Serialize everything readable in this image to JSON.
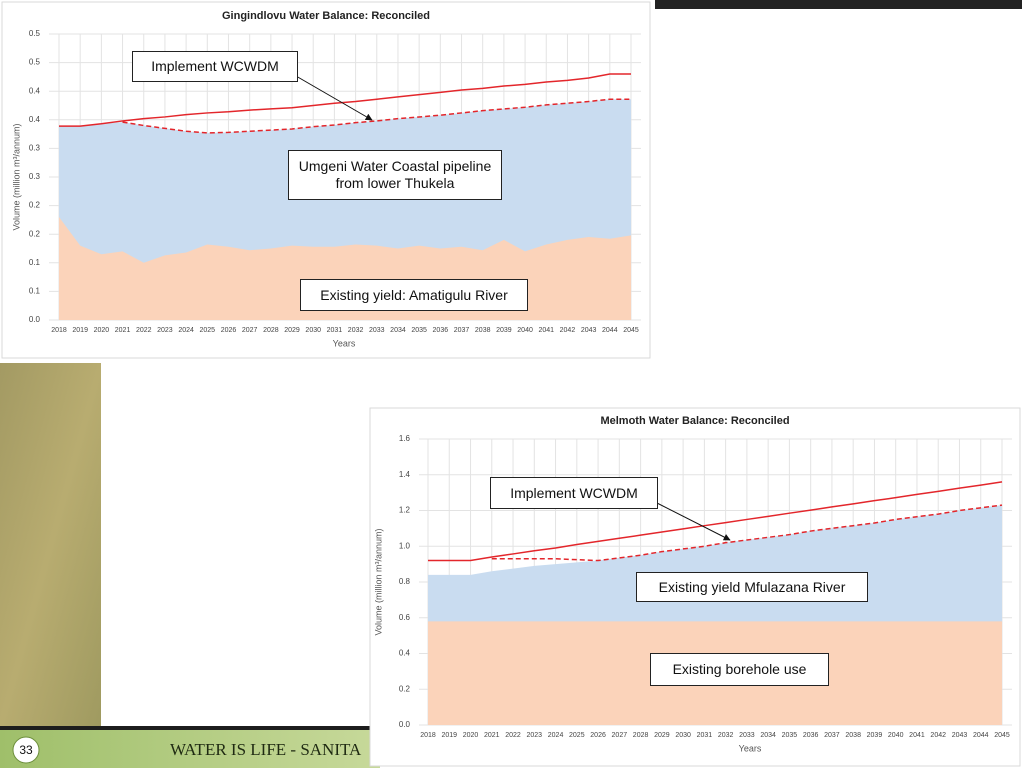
{
  "chart_data": [
    {
      "type": "line",
      "title": "Gingindlovu Water Balance: Reconciled",
      "x_label": "Years",
      "y_label": "Volume (million m³/annum)",
      "categories": [
        "2018",
        "2019",
        "2020",
        "2021",
        "2022",
        "2023",
        "2024",
        "2025",
        "2026",
        "2027",
        "2028",
        "2029",
        "2030",
        "2031",
        "2032",
        "2033",
        "2034",
        "2035",
        "2036",
        "2037",
        "2038",
        "2039",
        "2040",
        "2041",
        "2042",
        "2043",
        "2044",
        "2045"
      ],
      "ylim": [
        0,
        0.5
      ],
      "yticks": [
        {
          "value": 0,
          "label": "0.0"
        },
        {
          "value": 0.05,
          "label": "0.1"
        },
        0.1,
        {
          "value": 0.15,
          "label": "0.2"
        },
        0.2,
        {
          "value": 0.25,
          "label": "0.3"
        },
        0.3,
        {
          "value": 0.35,
          "label": "0.4"
        },
        0.4,
        {
          "value": 0.45,
          "label": "0.5"
        },
        0.5
      ],
      "grid": true,
      "series": [
        {
          "name": "Umgeni Water Coastal pipeline from lower Thukela",
          "kind": "area",
          "color": "#c9dcf0",
          "values": [
            0.339,
            0.339,
            0.343,
            0.346,
            0.34,
            0.335,
            0.33,
            0.327,
            0.328,
            0.33,
            0.332,
            0.334,
            0.338,
            0.341,
            0.345,
            0.348,
            0.352,
            0.355,
            0.358,
            0.362,
            0.366,
            0.369,
            0.372,
            0.376,
            0.379,
            0.382,
            0.386,
            0.386
          ]
        },
        {
          "name": "Existing yield: Amatigulu River",
          "kind": "area",
          "color": "#fbd3ba",
          "values": [
            0.18,
            0.13,
            0.115,
            0.12,
            0.1,
            0.113,
            0.118,
            0.132,
            0.128,
            0.122,
            0.125,
            0.13,
            0.128,
            0.128,
            0.132,
            0.13,
            0.125,
            0.13,
            0.125,
            0.128,
            0.122,
            0.14,
            0.12,
            0.132,
            0.14,
            0.145,
            0.142,
            0.148
          ]
        },
        {
          "kind": "line",
          "color": "#e3262b",
          "values": [
            0.339,
            0.339,
            0.343,
            0.348,
            0.352,
            0.355,
            0.359,
            0.362,
            0.364,
            0.367,
            0.369,
            0.371,
            0.375,
            0.379,
            0.382,
            0.386,
            0.39,
            0.394,
            0.398,
            0.402,
            0.405,
            0.409,
            0.412,
            0.416,
            0.419,
            0.423,
            0.43,
            0.43
          ]
        },
        {
          "name": "Implement WCWDM",
          "kind": "line",
          "dash": true,
          "color": "#e3262b",
          "values": [
            null,
            null,
            null,
            0.346,
            0.34,
            0.335,
            0.33,
            0.327,
            0.328,
            0.33,
            0.332,
            0.334,
            0.338,
            0.341,
            0.345,
            0.348,
            0.352,
            0.355,
            0.358,
            0.362,
            0.366,
            0.369,
            0.372,
            0.376,
            0.379,
            0.382,
            0.386,
            0.386
          ]
        }
      ]
    },
    {
      "type": "line",
      "title": "Melmoth Water Balance: Reconciled",
      "x_label": "Years",
      "y_label": "Volume (million m³/annum)",
      "categories": [
        "2018",
        "2019",
        "2020",
        "2021",
        "2022",
        "2023",
        "2024",
        "2025",
        "2026",
        "2027",
        "2028",
        "2029",
        "2030",
        "2031",
        "2032",
        "2033",
        "2034",
        "2035",
        "2036",
        "2037",
        "2038",
        "2039",
        "2040",
        "2041",
        "2042",
        "2043",
        "2044",
        "2045"
      ],
      "ylim": [
        0,
        1.6
      ],
      "yticks": [
        {
          "value": 0,
          "label": "0.0"
        },
        0.2,
        0.4,
        0.6,
        0.8,
        {
          "value": 1,
          "label": "1.0"
        },
        1.2,
        1.4,
        1.6
      ],
      "grid": true,
      "series": [
        {
          "name": "Existing yield Mfulazana River",
          "kind": "area",
          "color": "#c9dcf0",
          "values": [
            0.84,
            0.84,
            0.84,
            0.86,
            0.875,
            0.89,
            0.9,
            0.91,
            0.92,
            0.935,
            0.95,
            0.97,
            0.985,
            1.0,
            1.02,
            1.035,
            1.05,
            1.065,
            1.085,
            1.1,
            1.115,
            1.13,
            1.15,
            1.165,
            1.18,
            1.2,
            1.215,
            1.23
          ]
        },
        {
          "name": "Existing borehole use",
          "kind": "area",
          "color": "#fbd3ba",
          "values": [
            0.58,
            0.58,
            0.58,
            0.58,
            0.58,
            0.58,
            0.58,
            0.58,
            0.58,
            0.58,
            0.58,
            0.58,
            0.58,
            0.58,
            0.58,
            0.58,
            0.58,
            0.58,
            0.58,
            0.58,
            0.58,
            0.58,
            0.58,
            0.58,
            0.58,
            0.58,
            0.58,
            0.58
          ]
        },
        {
          "kind": "line",
          "color": "#e3262b",
          "values": [
            0.92,
            0.92,
            0.92,
            0.94,
            0.957,
            0.975,
            0.99,
            1.01,
            1.027,
            1.045,
            1.062,
            1.08,
            1.097,
            1.115,
            1.132,
            1.15,
            1.167,
            1.185,
            1.202,
            1.22,
            1.237,
            1.255,
            1.272,
            1.29,
            1.307,
            1.325,
            1.342,
            1.36
          ]
        },
        {
          "name": "Implement WCWDM",
          "kind": "line",
          "dash": true,
          "color": "#e3262b",
          "values": [
            null,
            null,
            null,
            0.93,
            0.93,
            0.93,
            0.93,
            0.925,
            0.92,
            0.935,
            0.95,
            0.97,
            0.985,
            1.0,
            1.02,
            1.035,
            1.05,
            1.065,
            1.085,
            1.1,
            1.115,
            1.13,
            1.15,
            1.165,
            1.18,
            1.2,
            1.215,
            1.23
          ]
        }
      ]
    }
  ],
  "footer": {
    "page_number": "33",
    "slogan": "WATER IS LIFE - SANITA"
  }
}
